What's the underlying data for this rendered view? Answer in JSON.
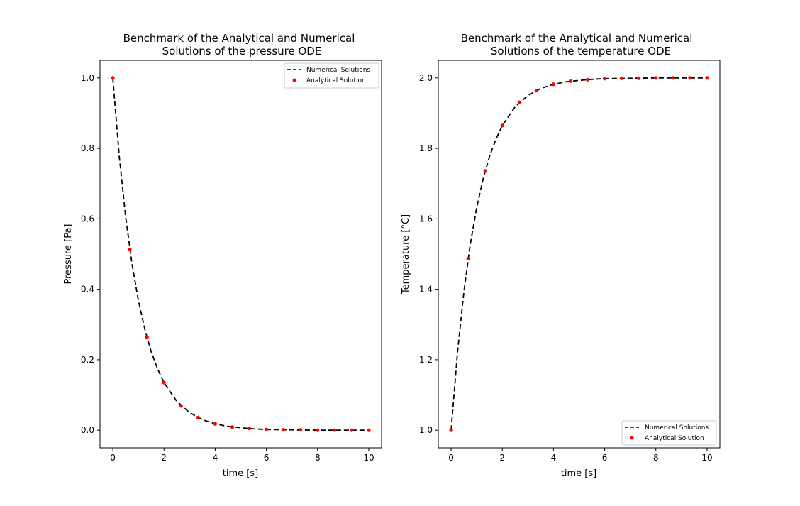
{
  "chart_data": [
    {
      "type": "line",
      "title_line1": "Benchmark of the Analytical and Numerical",
      "title_line2": "Solutions of the pressure ODE",
      "xlabel": "time [s]",
      "ylabel": "Pressure [Pa]",
      "xlim": [
        -0.5,
        10.5
      ],
      "ylim": [
        -0.05,
        1.05
      ],
      "xticks": [
        0,
        2,
        4,
        6,
        8,
        10
      ],
      "xtick_labels": [
        "0",
        "2",
        "4",
        "6",
        "8",
        "10"
      ],
      "yticks": [
        0.0,
        0.2,
        0.4,
        0.6,
        0.8,
        1.0
      ],
      "ytick_labels": [
        "0.0",
        "0.2",
        "0.4",
        "0.6",
        "0.8",
        "1.0"
      ],
      "legend_position": "top-right",
      "series": [
        {
          "name": "Numerical Solutions",
          "kind": "line",
          "style": "dashed",
          "color": "#000000",
          "x": [
            0,
            0.25,
            0.5,
            0.75,
            1.0,
            1.25,
            1.5,
            1.75,
            2.0,
            2.5,
            3.0,
            3.5,
            4.0,
            4.5,
            5.0,
            5.5,
            6.0,
            7.0,
            8.0,
            9.0,
            10.0
          ],
          "values": [
            1.0,
            0.779,
            0.607,
            0.472,
            0.368,
            0.287,
            0.223,
            0.174,
            0.135,
            0.082,
            0.05,
            0.03,
            0.018,
            0.011,
            0.007,
            0.004,
            0.002,
            0.001,
            0.0,
            0.0,
            0.0
          ]
        },
        {
          "name": "Analytical Solution",
          "kind": "scatter",
          "color": "#ff0000",
          "x": [
            0,
            0.667,
            1.333,
            2.0,
            2.667,
            3.333,
            4.0,
            4.667,
            5.333,
            6.0,
            6.667,
            7.333,
            8.0,
            8.667,
            9.333,
            10.0
          ],
          "values": [
            1.0,
            0.513,
            0.264,
            0.135,
            0.069,
            0.036,
            0.018,
            0.009,
            0.005,
            0.002,
            0.001,
            0.001,
            0.0,
            0.0,
            0.0,
            0.0
          ]
        }
      ]
    },
    {
      "type": "line",
      "title_line1": "Benchmark of the Analytical and Numerical",
      "title_line2": "Solutions of the temperature ODE",
      "xlabel": "time [s]",
      "ylabel": "Temperature [°C]",
      "xlim": [
        -0.5,
        10.5
      ],
      "ylim": [
        0.95,
        2.05
      ],
      "xticks": [
        0,
        2,
        4,
        6,
        8,
        10
      ],
      "xtick_labels": [
        "0",
        "2",
        "4",
        "6",
        "8",
        "10"
      ],
      "yticks": [
        1.0,
        1.2,
        1.4,
        1.6,
        1.8,
        2.0
      ],
      "ytick_labels": [
        "1.0",
        "1.2",
        "1.4",
        "1.6",
        "1.8",
        "2.0"
      ],
      "legend_position": "bottom-right",
      "series": [
        {
          "name": "Numerical Solutions",
          "kind": "line",
          "style": "dashed",
          "color": "#000000",
          "x": [
            0,
            0.25,
            0.5,
            0.75,
            1.0,
            1.25,
            1.5,
            1.75,
            2.0,
            2.5,
            3.0,
            3.5,
            4.0,
            4.5,
            5.0,
            5.5,
            6.0,
            7.0,
            8.0,
            9.0,
            10.0
          ],
          "values": [
            1.0,
            1.221,
            1.393,
            1.528,
            1.632,
            1.713,
            1.777,
            1.826,
            1.865,
            1.918,
            1.95,
            1.97,
            1.982,
            1.989,
            1.993,
            1.996,
            1.998,
            1.999,
            2.0,
            2.0,
            2.0
          ]
        },
        {
          "name": "Analytical Solution",
          "kind": "scatter",
          "color": "#ff0000",
          "x": [
            0,
            0.667,
            1.333,
            2.0,
            2.667,
            3.333,
            4.0,
            4.667,
            5.333,
            6.0,
            6.667,
            7.333,
            8.0,
            8.667,
            9.333,
            10.0
          ],
          "values": [
            1.0,
            1.487,
            1.736,
            1.865,
            1.931,
            1.964,
            1.982,
            1.991,
            1.995,
            1.998,
            1.999,
            1.999,
            2.0,
            2.0,
            2.0,
            2.0
          ]
        }
      ]
    }
  ]
}
